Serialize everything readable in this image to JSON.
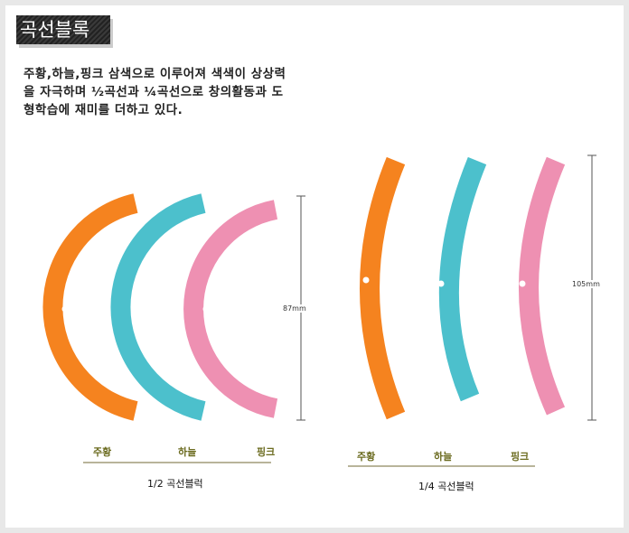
{
  "title": "곡선블록",
  "description": "주황,하늘,핑크 삼색으로 이루어져 색색이 상상력을 자극하며 ½곡선과 ¼곡선으로 창의활동과 도형학습에 재미를 더하고 있다.",
  "colors": {
    "orange": "#f5831f",
    "sky": "#4cc0cc",
    "pink": "#ee90b2"
  },
  "half_group": {
    "labels": [
      "주황",
      "하늘",
      "핑크"
    ],
    "caption": "1/2 곡선블럭",
    "dimension": "87mm"
  },
  "quarter_group": {
    "labels": [
      "주황",
      "하늘",
      "핑크"
    ],
    "caption": "1/4 곡선블럭",
    "dimension": "105mm"
  }
}
